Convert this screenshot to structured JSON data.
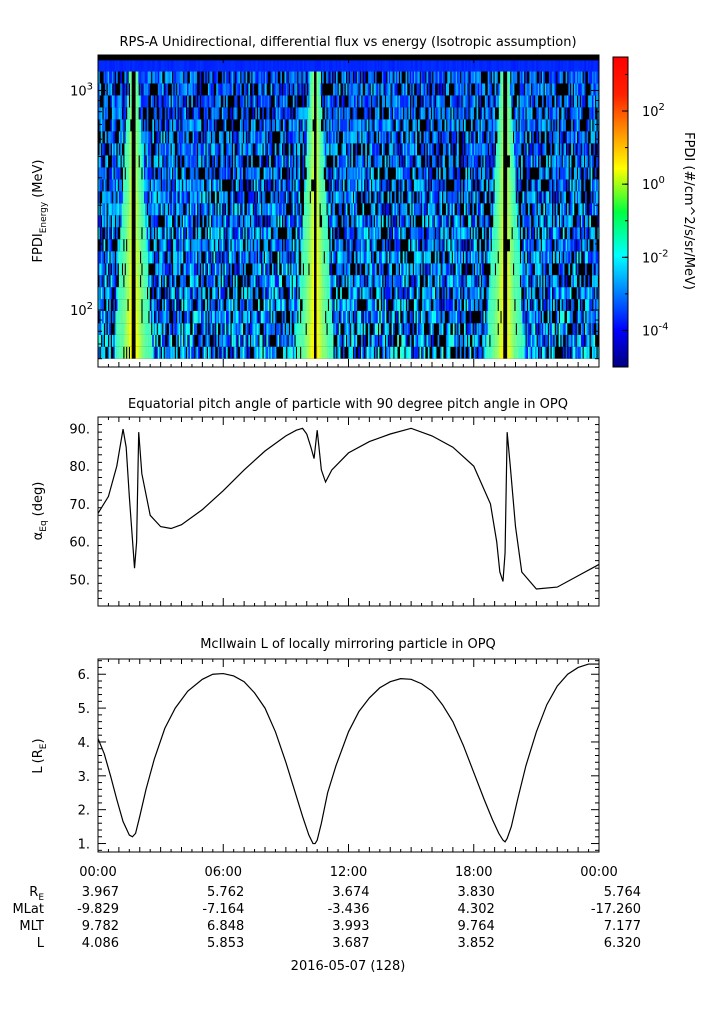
{
  "chart_data": [
    {
      "type": "heatmap",
      "title": "RPS-A Unidirectional, differential flux vs energy (Isotropic assumption)",
      "ylabel_main": "FPDI",
      "ylabel_sub": "Energy",
      "ylabel_unit": "(MeV)",
      "y_scale": "log",
      "ylim": [
        55,
        1450
      ],
      "yticks": [
        {
          "value": 100,
          "base": "10",
          "exp": "2"
        },
        {
          "value": 1000,
          "base": "10",
          "exp": "3"
        }
      ],
      "energy_bins_mev": [
        60,
        68,
        77,
        87,
        99,
        112,
        127,
        144,
        163,
        185,
        210,
        238,
        270,
        306,
        347,
        393,
        446,
        506,
        574,
        651,
        738,
        837,
        949,
        1076,
        1220,
        1370
      ],
      "colorbar": {
        "label": "FPDI (#/cm^2/s/sr/MeV)",
        "scale": "log",
        "range": [
          1e-05,
          3000
        ],
        "ticks": [
          {
            "value": 0.0001,
            "base": "10",
            "exp": "-4"
          },
          {
            "value": 0.01,
            "base": "10",
            "exp": "-2"
          },
          {
            "value": 1,
            "base": "10",
            "exp": "0"
          },
          {
            "value": 100,
            "base": "10",
            "exp": "2"
          }
        ]
      },
      "flux_peaks_hours": [
        1.7,
        10.4,
        19.5
      ],
      "background_flux": "0.0001–0.1 with many empty (black) bins",
      "peak_flux": "1–10"
    },
    {
      "type": "line",
      "title": "Equatorial pitch angle of particle with 90 degree pitch angle in OPQ",
      "ylabel_main": "α",
      "ylabel_sub": "Eq",
      "ylabel_unit": "(deg)",
      "ylim": [
        43,
        93
      ],
      "yticks": [
        {
          "value": 50,
          "label": "50."
        },
        {
          "value": 60,
          "label": "60."
        },
        {
          "value": 70,
          "label": "70."
        },
        {
          "value": 80,
          "label": "80."
        },
        {
          "value": 90,
          "label": "90."
        }
      ],
      "x_hours": [
        0,
        0.5,
        0.9,
        1.2,
        1.35,
        1.5,
        1.75,
        1.85,
        1.95,
        2.1,
        2.5,
        3.0,
        3.5,
        4.0,
        5.0,
        6.0,
        7.0,
        8.0,
        9.0,
        9.5,
        9.8,
        10.0,
        10.2,
        10.35,
        10.5,
        10.7,
        10.9,
        11.2,
        12.0,
        13.0,
        14.0,
        15.0,
        16.0,
        17.0,
        18.0,
        18.8,
        19.1,
        19.25,
        19.4,
        19.5,
        19.6,
        19.75,
        20.0,
        20.3,
        21.0,
        22.0,
        23.0,
        24.0
      ],
      "values_deg": [
        67.5,
        72,
        80,
        89.8,
        85,
        72,
        53,
        60,
        89,
        78,
        67,
        64,
        63.5,
        64.5,
        68.5,
        73.5,
        79,
        84,
        88,
        89.5,
        90,
        88.5,
        85,
        82,
        89.5,
        79,
        75.8,
        79,
        83.5,
        86.5,
        88.5,
        90,
        88,
        85,
        80,
        70,
        60,
        52,
        49.5,
        57,
        89,
        80,
        64,
        52,
        47.5,
        48,
        51,
        54
      ]
    },
    {
      "type": "line",
      "title": "McIlwain L of locally mirroring particle in OPQ",
      "ylabel_main": "L",
      "ylabel_unit_base": "R",
      "ylabel_unit_sub": "E",
      "ylim": [
        0.75,
        6.45
      ],
      "yticks": [
        {
          "value": 1,
          "label": "1."
        },
        {
          "value": 2,
          "label": "2."
        },
        {
          "value": 3,
          "label": "3."
        },
        {
          "value": 4,
          "label": "4."
        },
        {
          "value": 5,
          "label": "5."
        },
        {
          "value": 6,
          "label": "6."
        }
      ],
      "x_hours": [
        0,
        0.3,
        0.6,
        0.9,
        1.2,
        1.5,
        1.65,
        1.8,
        2.0,
        2.3,
        2.7,
        3.2,
        3.7,
        4.3,
        5.0,
        5.5,
        6.0,
        6.5,
        7.0,
        7.5,
        8.0,
        8.5,
        9.0,
        9.4,
        9.8,
        10.1,
        10.3,
        10.4,
        10.5,
        10.7,
        11.0,
        11.4,
        12.0,
        12.5,
        13.0,
        13.5,
        14.0,
        14.5,
        15.0,
        15.5,
        16.0,
        16.5,
        17.0,
        17.5,
        18.0,
        18.5,
        18.9,
        19.2,
        19.4,
        19.5,
        19.6,
        19.8,
        20.1,
        20.5,
        21.0,
        21.5,
        22.0,
        22.5,
        23.0,
        23.5,
        24.0
      ],
      "values_re": [
        4.1,
        3.65,
        3.0,
        2.3,
        1.65,
        1.25,
        1.2,
        1.3,
        1.8,
        2.6,
        3.5,
        4.4,
        5.0,
        5.5,
        5.85,
        6.0,
        6.02,
        5.95,
        5.78,
        5.45,
        5.0,
        4.3,
        3.4,
        2.6,
        1.8,
        1.25,
        1.0,
        1.0,
        1.1,
        1.6,
        2.5,
        3.3,
        4.3,
        4.9,
        5.3,
        5.6,
        5.78,
        5.87,
        5.85,
        5.72,
        5.5,
        5.1,
        4.6,
        3.9,
        3.1,
        2.3,
        1.7,
        1.3,
        1.1,
        1.05,
        1.15,
        1.5,
        2.3,
        3.3,
        4.3,
        5.1,
        5.65,
        6.0,
        6.2,
        6.3,
        6.3
      ]
    }
  ],
  "time_axis": {
    "range_hours": [
      0,
      24
    ],
    "ticks": [
      {
        "hour": 0,
        "label": "00:00"
      },
      {
        "hour": 6,
        "label": "06:00"
      },
      {
        "hour": 12,
        "label": "12:00"
      },
      {
        "hour": 18,
        "label": "18:00"
      },
      {
        "hour": 24,
        "label": "00:00"
      }
    ],
    "date_label": "2016-05-07 (128)"
  },
  "ephemeris": [
    {
      "label_base": "R",
      "label_sub": "E",
      "values": [
        "3.967",
        "5.762",
        "3.674",
        "3.830",
        "5.764"
      ]
    },
    {
      "label_base": "MLat",
      "label_sub": "",
      "values": [
        "-9.829",
        "-7.164",
        "-3.436",
        "4.302",
        "-17.260"
      ]
    },
    {
      "label_base": "MLT",
      "label_sub": "",
      "values": [
        "9.782",
        "6.848",
        "3.993",
        "9.764",
        "7.177"
      ]
    },
    {
      "label_base": "L",
      "label_sub": "",
      "values": [
        "4.086",
        "5.853",
        "3.687",
        "3.852",
        "6.320"
      ]
    }
  ]
}
